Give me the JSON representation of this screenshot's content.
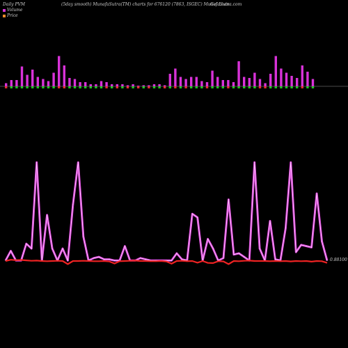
{
  "header": {
    "left_title": "Daily PVM",
    "center_title": "(5day smooth) MunafaSutra(TM) charts for 676120 (7863, ISGEC) MunafaSutra.com",
    "right_title": "Gel Loan"
  },
  "legend": [
    {
      "label": "Volume",
      "color": "#d832d8"
    },
    {
      "label": "Price",
      "color": "#e88a2a"
    }
  ],
  "colors": {
    "volume_bar": "#d832d8",
    "volume_up": "#22c422",
    "volume_down": "#e03030",
    "line_outer": "#d840d8",
    "line_inner": "#ffd8ff",
    "price_line": "#ee2222",
    "baseline": "#9a9a9a"
  },
  "chart_data": [
    {
      "type": "bar",
      "name": "volume",
      "values": [
        3,
        6,
        6,
        19,
        11,
        16,
        9,
        7,
        5,
        13,
        29,
        20,
        8,
        7,
        4,
        4,
        2,
        2,
        5,
        4,
        2,
        2,
        2,
        1,
        2,
        0.6,
        1,
        1,
        2,
        2,
        1,
        12,
        17,
        9,
        7,
        9,
        9,
        5,
        4,
        15,
        9,
        6,
        6,
        4,
        24,
        9,
        8,
        13,
        7,
        3,
        12,
        29,
        17,
        13,
        10,
        8,
        20,
        14,
        7
      ],
      "direction": [
        "down",
        "up",
        "up",
        "up",
        "up",
        "up",
        "up",
        "up",
        "up",
        "up",
        "down",
        "down",
        "up",
        "up",
        "up",
        "up",
        "up",
        "up",
        "up",
        "down",
        "up",
        "down",
        "up",
        "down",
        "up",
        "down",
        "up",
        "down",
        "up",
        "up",
        "down",
        "up",
        "down",
        "up",
        "down",
        "up",
        "up",
        "up",
        "down",
        "up",
        "up",
        "up",
        "down",
        "up",
        "up",
        "up",
        "up",
        "up",
        "down",
        "down",
        "up",
        "up",
        "up",
        "up",
        "up",
        "up",
        "down",
        "up",
        "up"
      ]
    },
    {
      "type": "line",
      "name": "volume_smooth",
      "values": [
        1,
        9,
        1,
        1,
        15,
        11,
        83,
        1,
        39,
        11,
        1,
        11,
        1,
        48,
        83,
        21,
        1,
        3,
        4,
        2,
        2,
        1,
        1,
        13,
        1,
        1,
        3,
        2,
        1,
        1,
        1,
        1,
        1,
        7,
        2,
        1,
        40,
        37,
        1,
        19,
        11,
        1,
        3,
        52,
        6,
        7,
        4,
        1,
        83,
        11,
        1,
        34,
        2,
        1,
        28,
        83,
        8,
        14,
        13,
        12,
        57,
        17,
        1
      ],
      "price_reference": "0.88100",
      "price_values": [
        1.0,
        1.6,
        1.4,
        1.5,
        1.3,
        1.1,
        1.2,
        1.0,
        0.9,
        1.0,
        1.1,
        1.0,
        -0.5,
        1.0,
        1.0,
        1.1,
        1.0,
        0.9,
        0.9,
        1.0,
        0.8,
        -0.2,
        0.9,
        1.0,
        1.1,
        1.2,
        1.0,
        1.0,
        0.9,
        0.9,
        1.0,
        0.8,
        -0.3,
        1.0,
        1.1,
        0.9,
        1.0,
        0.2,
        1.0,
        0.1,
        0.0,
        0.9,
        0.8,
        -0.5,
        1.0,
        0.9,
        1.1,
        1.2,
        1.0,
        1.0,
        1.0,
        0.9,
        1.0,
        0.9,
        1.0,
        0.8,
        1.0,
        0.9,
        1.0,
        0.7,
        1.0,
        0.9,
        0.1
      ]
    }
  ]
}
